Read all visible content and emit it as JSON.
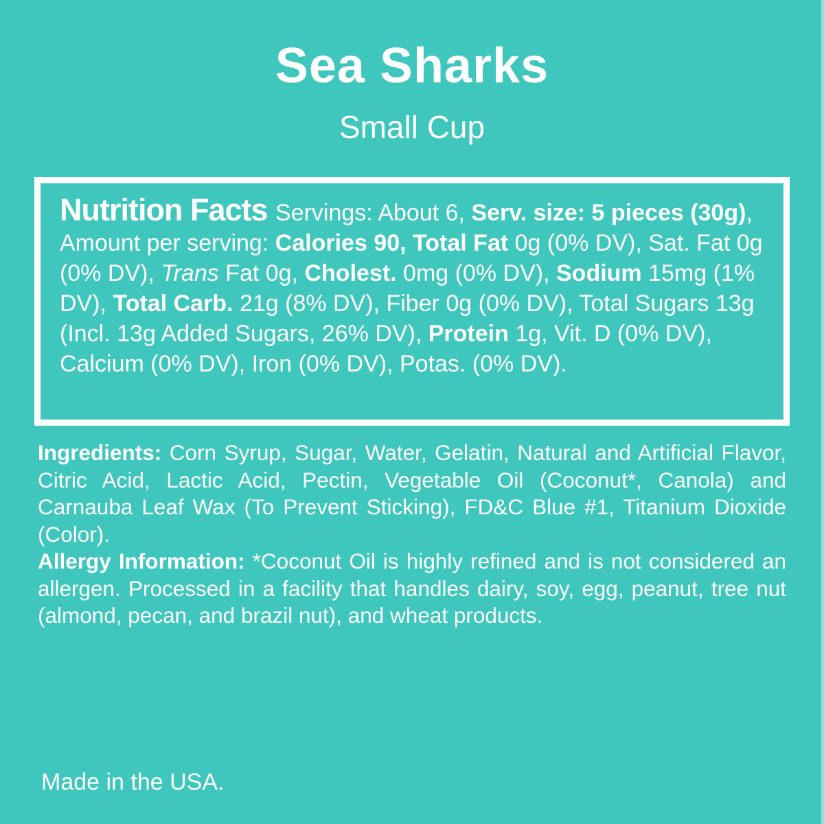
{
  "colors": {
    "background": "#3fc6bd",
    "text": "#ffffff"
  },
  "header": {
    "title": "Sea Sharks",
    "subtitle": "Small Cup"
  },
  "nutrition_facts": {
    "heading": "Nutrition Facts",
    "segments": [
      {
        "t": "Nutrition Facts ",
        "h": true
      },
      {
        "t": "Servings: About 6, "
      },
      {
        "t": "Serv. size: 5 pieces (30g)",
        "b": true
      },
      {
        "t": ", Amount per serving: "
      },
      {
        "t": "Calories 90, Total Fat",
        "b": true
      },
      {
        "t": " 0g (0% DV), Sat. Fat 0g (0% DV), "
      },
      {
        "t": "Trans",
        "i": true
      },
      {
        "t": " Fat 0g, "
      },
      {
        "t": "Cholest.",
        "b": true
      },
      {
        "t": " 0mg (0% DV), "
      },
      {
        "t": "Sodium",
        "b": true
      },
      {
        "t": " 15mg (1% DV), "
      },
      {
        "t": "Total Carb.",
        "b": true
      },
      {
        "t": " 21g (8% DV), Fiber 0g (0% DV), Total Sugars 13g (Incl. 13g Added Sugars, 26% DV), "
      },
      {
        "t": "Protein",
        "b": true
      },
      {
        "t": " 1g, Vit. D (0% DV), Calcium (0% DV), Iron (0% DV), Potas. (0% DV)."
      }
    ]
  },
  "ingredients": {
    "segments": [
      {
        "t": "Ingredients:",
        "b": true
      },
      {
        "t": " Corn Syrup, Sugar, Water, Gelatin, Natural and Artificial Flavor, Citric Acid, Lactic Acid, Pectin, Vegetable Oil (Coconut*, Canola) and Carnauba Leaf Wax (To Prevent Sticking), FD&C Blue #1, Titanium Dioxide (Color)."
      }
    ]
  },
  "allergy": {
    "segments": [
      {
        "t": "Allergy Information:",
        "b": true
      },
      {
        "t": " *Coconut Oil is highly refined and is not considered an allergen. Processed in a facility that handles dairy, soy, egg, peanut, tree nut (almond, pecan, and brazil nut), and wheat products."
      }
    ]
  },
  "footer": {
    "made_in": "Made in the USA."
  }
}
